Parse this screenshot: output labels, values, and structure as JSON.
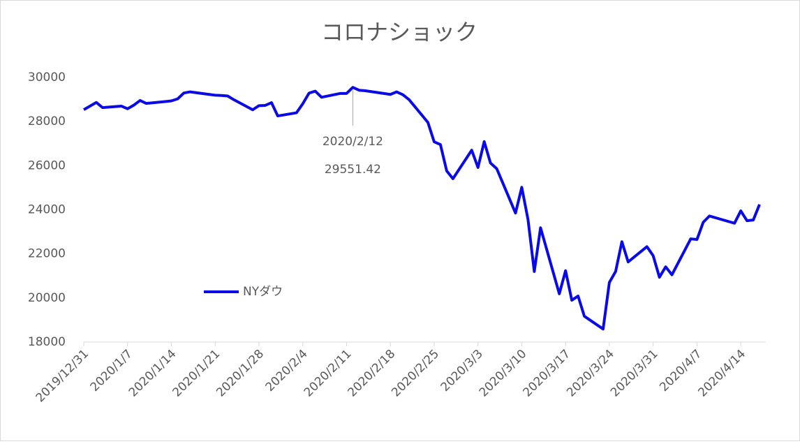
{
  "chart_data": {
    "type": "line",
    "title": "コロナショック",
    "x": [
      "2019/12/31",
      "2020/1/2",
      "2020/1/3",
      "2020/1/6",
      "2020/1/7",
      "2020/1/8",
      "2020/1/9",
      "2020/1/10",
      "2020/1/13",
      "2020/1/14",
      "2020/1/15",
      "2020/1/16",
      "2020/1/17",
      "2020/1/21",
      "2020/1/22",
      "2020/1/23",
      "2020/1/24",
      "2020/1/27",
      "2020/1/28",
      "2020/1/29",
      "2020/1/30",
      "2020/1/31",
      "2020/2/3",
      "2020/2/4",
      "2020/2/5",
      "2020/2/6",
      "2020/2/7",
      "2020/2/10",
      "2020/2/11",
      "2020/2/12",
      "2020/2/13",
      "2020/2/14",
      "2020/2/18",
      "2020/2/19",
      "2020/2/20",
      "2020/2/21",
      "2020/2/24",
      "2020/2/25",
      "2020/2/26",
      "2020/2/27",
      "2020/2/28",
      "2020/3/2",
      "2020/3/3",
      "2020/3/4",
      "2020/3/5",
      "2020/3/6",
      "2020/3/9",
      "2020/3/10",
      "2020/3/11",
      "2020/3/12",
      "2020/3/13",
      "2020/3/16",
      "2020/3/17",
      "2020/3/18",
      "2020/3/19",
      "2020/3/20",
      "2020/3/23",
      "2020/3/24",
      "2020/3/25",
      "2020/3/26",
      "2020/3/27",
      "2020/3/30",
      "2020/3/31",
      "2020/4/1",
      "2020/4/2",
      "2020/4/3",
      "2020/4/6",
      "2020/4/7",
      "2020/4/8",
      "2020/4/9",
      "2020/4/13",
      "2020/4/14",
      "2020/4/15",
      "2020/4/16",
      "2020/4/17"
    ],
    "series": [
      {
        "name": "NYダウ",
        "color": "#0a0ae6",
        "values": [
          28538.44,
          28868.8,
          28634.88,
          28703.38,
          28583.68,
          28745.09,
          28956.9,
          28823.77,
          28907.05,
          28939.67,
          29030.22,
          29297.64,
          29348.1,
          29196.04,
          29186.27,
          29160.09,
          28989.73,
          28535.8,
          28722.85,
          28734.45,
          28859.44,
          28256.03,
          28399.81,
          28807.63,
          29290.85,
          29379.77,
          29102.51,
          29276.82,
          29276.34,
          29551.42,
          29423.31,
          29398.08,
          29232.19,
          29348.03,
          29219.98,
          28992.41,
          27960.8,
          27081.36,
          26957.59,
          25766.64,
          25409.36,
          26703.32,
          25917.41,
          27090.86,
          26121.28,
          25864.78,
          23851.02,
          25018.16,
          23553.22,
          21200.62,
          23185.62,
          20188.52,
          21237.38,
          19898.92,
          20087.19,
          19173.98,
          18591.93,
          20704.91,
          21200.55,
          22552.17,
          21636.78,
          22327.48,
          21917.16,
          20943.51,
          21413.44,
          21052.53,
          22679.99,
          22653.86,
          23433.57,
          23719.37,
          23390.77,
          23949.76,
          23504.35,
          23537.68,
          24242.49
        ]
      }
    ],
    "xlim": [
      "2019/12/31",
      "2020/4/18"
    ],
    "xticks": [
      "2019/12/31",
      "2020/1/7",
      "2020/1/14",
      "2020/1/21",
      "2020/1/28",
      "2020/2/4",
      "2020/2/11",
      "2020/2/18",
      "2020/2/25",
      "2020/3/3",
      "2020/3/10",
      "2020/3/17",
      "2020/3/24",
      "2020/3/31",
      "2020/4/7",
      "2020/4/14"
    ],
    "ylim": [
      18000,
      30000
    ],
    "yticks": [
      18000,
      20000,
      22000,
      24000,
      26000,
      28000,
      30000
    ],
    "grid": false,
    "legend": "left"
  }
}
